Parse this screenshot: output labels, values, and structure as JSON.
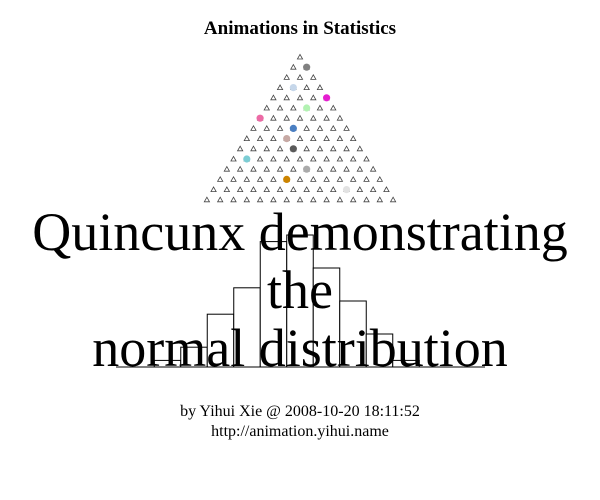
{
  "title": "Animations in Statistics",
  "overlay": {
    "line1": "Quincunx demonstrating",
    "line2": "the",
    "line3": "normal distribution"
  },
  "byline": {
    "author": "by Yihui Xie @ 2008-10-20 18:11:52",
    "url": "http://animation.yihui.name"
  },
  "chart_data": {
    "type": "bar",
    "title": "Quincunx demonstrating the normal distribution",
    "description_of_marks": "histogram of ball bins beneath a triangular board of pins",
    "pin_rows": 15,
    "bin_counts": [
      0,
      0,
      1,
      3,
      8,
      12,
      19,
      20,
      15,
      10,
      5,
      1,
      0,
      0,
      0
    ],
    "balls_in_flight": [
      {
        "row": 1,
        "col": 1,
        "color": "#808080"
      },
      {
        "row": 3,
        "col": 1,
        "color": "#c6d7ea"
      },
      {
        "row": 4,
        "col": 4,
        "color": "#e51ed0"
      },
      {
        "row": 5,
        "col": 3,
        "color": "#b2f2b2"
      },
      {
        "row": 6,
        "col": 0,
        "color": "#ec6aa5"
      },
      {
        "row": 7,
        "col": 3,
        "color": "#4b7fc2"
      },
      {
        "row": 8,
        "col": 3,
        "color": "#c7a9a4"
      },
      {
        "row": 9,
        "col": 4,
        "color": "#5a5a5a"
      },
      {
        "row": 10,
        "col": 1,
        "color": "#7ccdd4"
      },
      {
        "row": 11,
        "col": 6,
        "color": "#aaaaaa"
      },
      {
        "row": 12,
        "col": 5,
        "color": "#cc8400"
      },
      {
        "row": 13,
        "col": 10,
        "color": "#e2e2e2"
      }
    ]
  }
}
